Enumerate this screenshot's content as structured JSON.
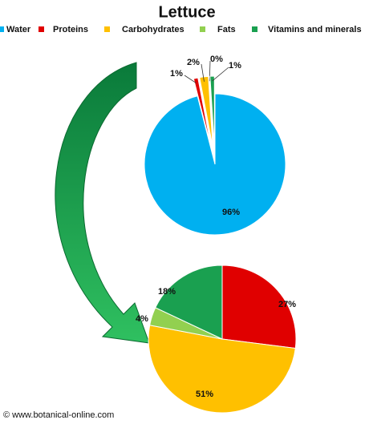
{
  "chart_data": [
    {
      "type": "pie",
      "title": "Lettuce",
      "categories": [
        "Water",
        "Proteins",
        "Carbohydrates",
        "Fats",
        "Vitamins and minerals"
      ],
      "values": [
        96,
        1,
        2,
        0,
        1
      ],
      "value_labels": [
        "96%",
        "1%",
        "2%",
        "0%",
        "1%"
      ],
      "colors": [
        "#00b0f0",
        "#e00000",
        "#ffc000",
        "#92d050",
        "#1aa050"
      ]
    },
    {
      "type": "pie",
      "values": [
        27,
        51,
        4,
        18
      ],
      "value_labels": [
        "27%",
        "51%",
        "4%",
        "18%"
      ],
      "colors": [
        "#e00000",
        "#ffc000",
        "#92d050",
        "#1aa050"
      ]
    }
  ],
  "credit": "© www.botanical-online.com"
}
